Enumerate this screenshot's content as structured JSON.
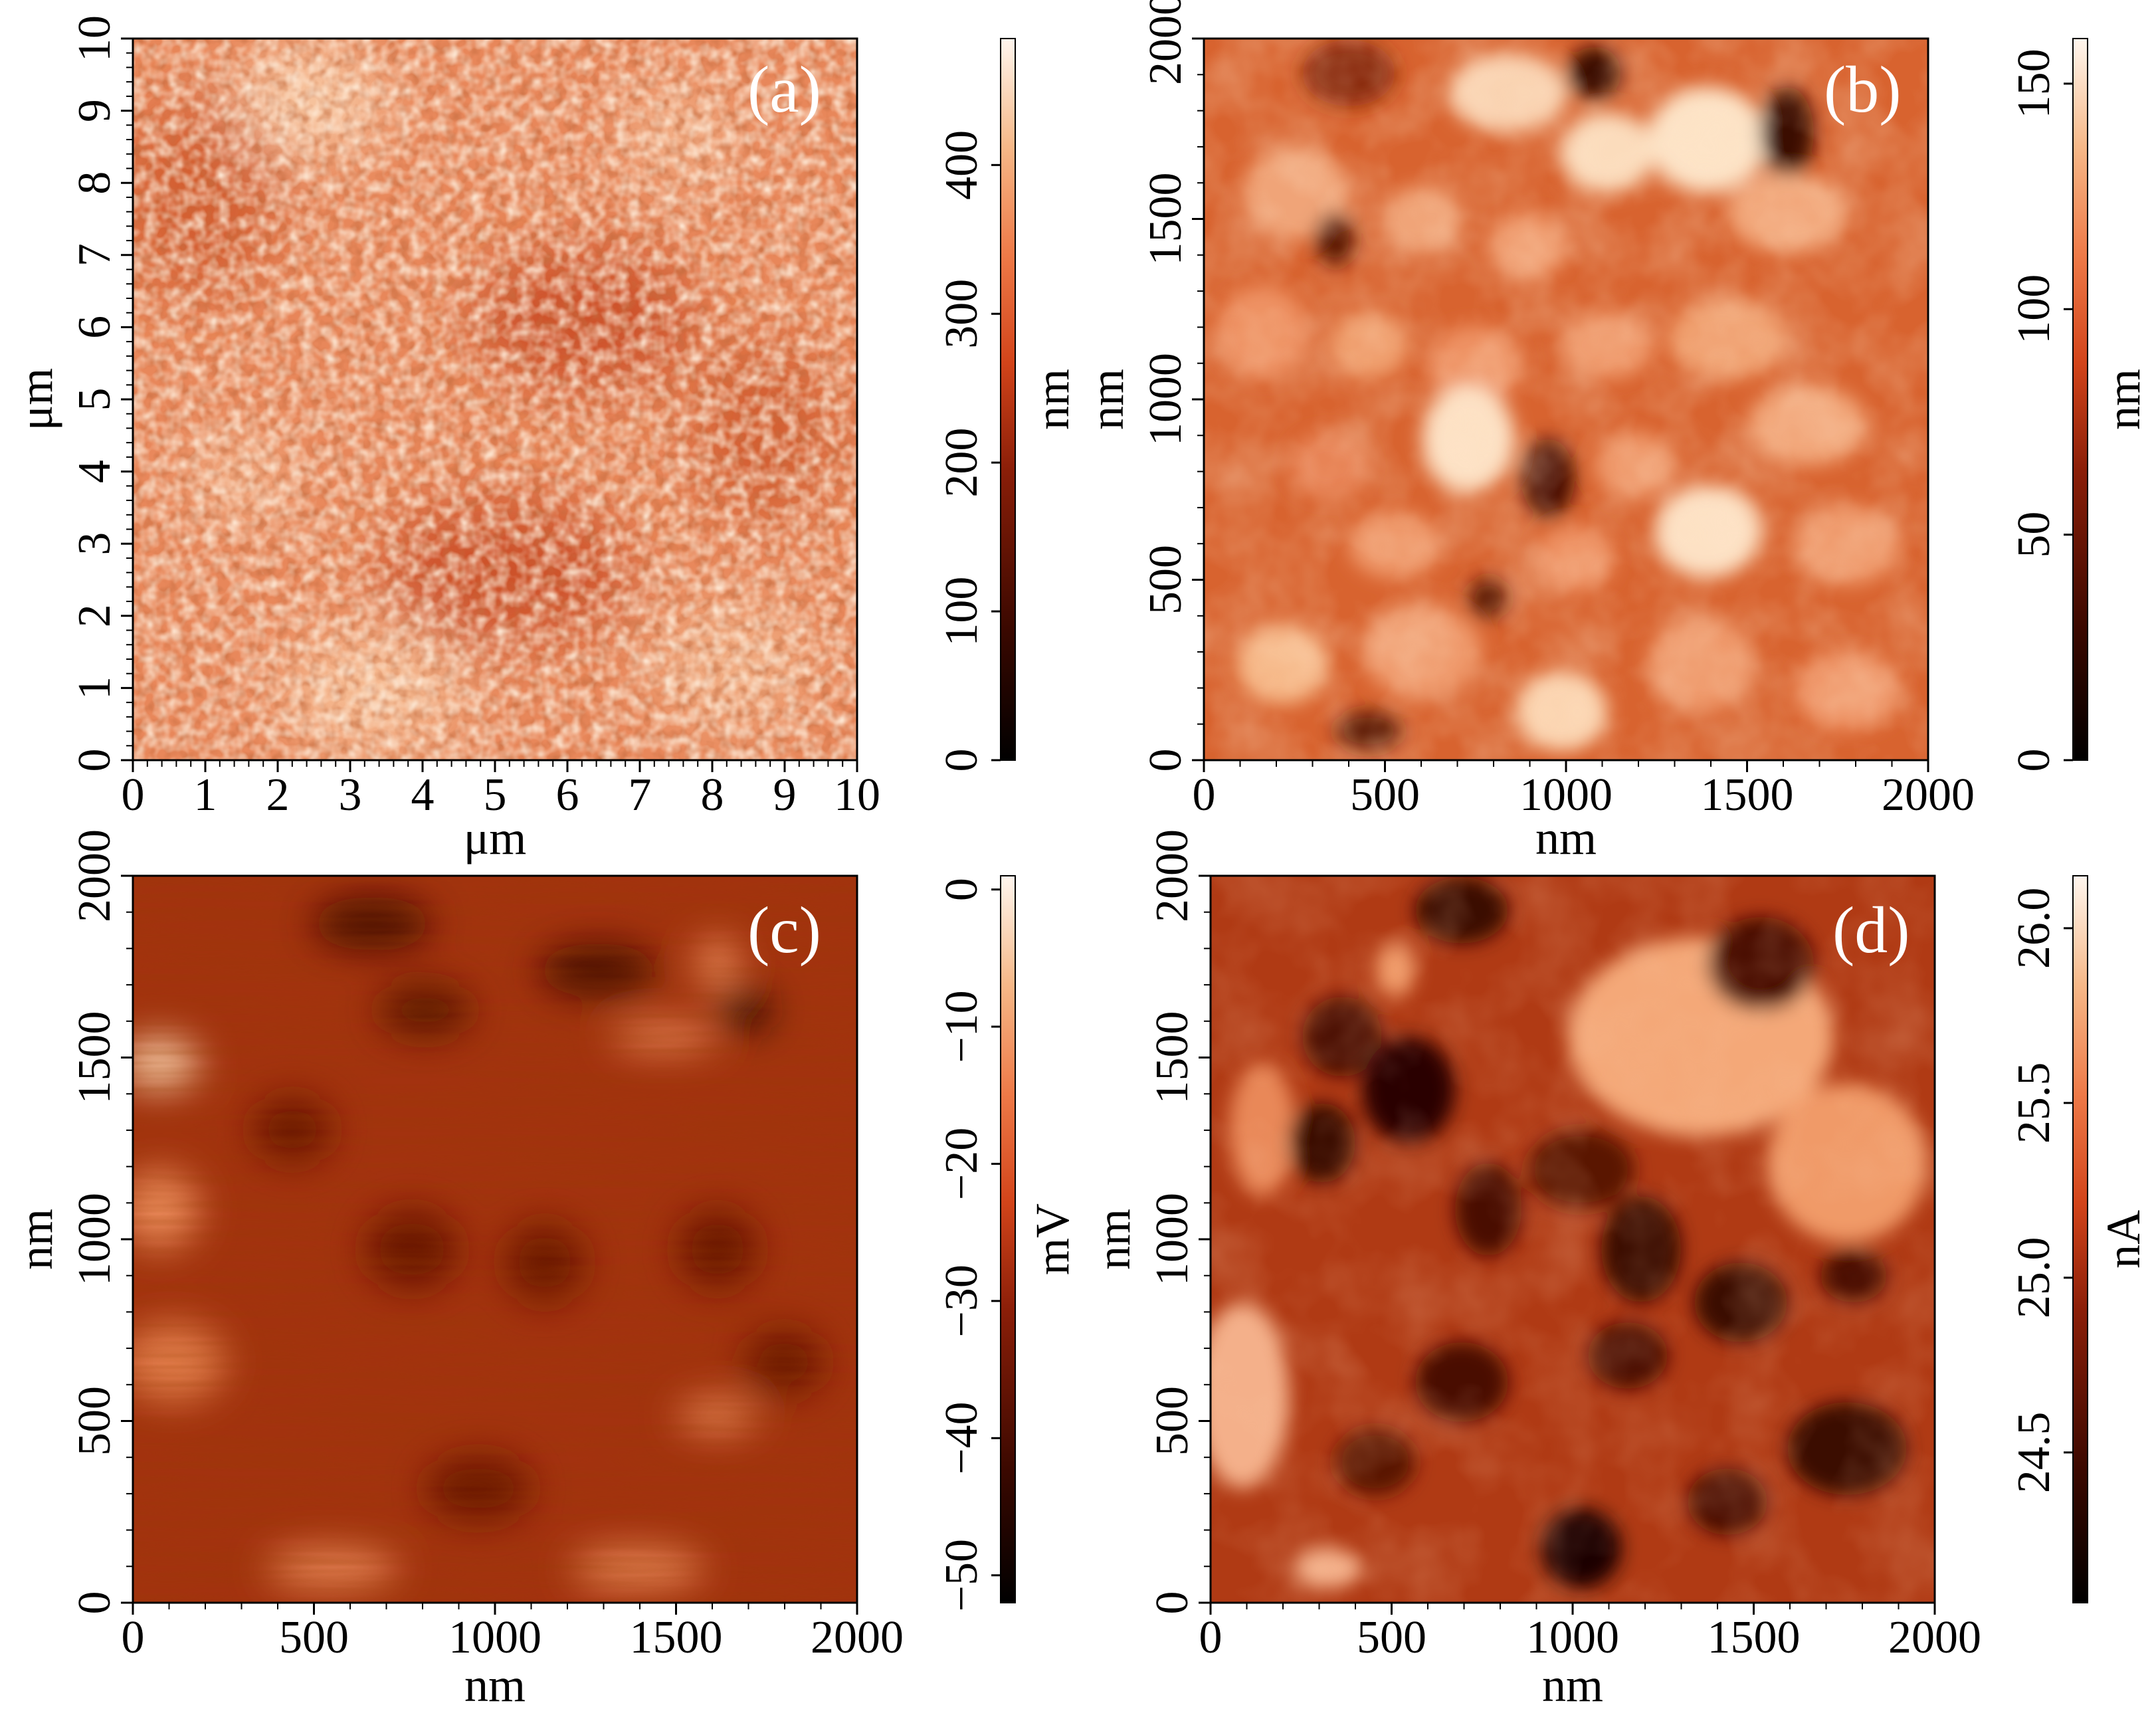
{
  "panels": [
    {
      "id": "a",
      "label": "(a)",
      "x_ticks": [
        "0",
        "1",
        "2",
        "3",
        "4",
        "5",
        "6",
        "7",
        "8",
        "9",
        "10"
      ],
      "y_ticks": [
        "0",
        "1",
        "2",
        "3",
        "4",
        "5",
        "6",
        "7",
        "8",
        "9",
        "10"
      ],
      "x_unit": "μm",
      "y_unit": "μm",
      "colorbar_ticks": [
        "0",
        "100",
        "200",
        "300",
        "400"
      ],
      "colorbar_unit": "nm"
    },
    {
      "id": "b",
      "label": "(b)",
      "x_ticks": [
        "0",
        "500",
        "1000",
        "1500",
        "2000"
      ],
      "y_ticks": [
        "0",
        "500",
        "1000",
        "1500",
        "2000"
      ],
      "x_unit": "nm",
      "y_unit": "nm",
      "colorbar_ticks": [
        "0",
        "50",
        "100",
        "150"
      ],
      "colorbar_unit": "nm"
    },
    {
      "id": "c",
      "label": "(c)",
      "x_ticks": [
        "0",
        "500",
        "1000",
        "1500",
        "2000"
      ],
      "y_ticks": [
        "0",
        "500",
        "1000",
        "1500",
        "2000"
      ],
      "x_unit": "nm",
      "y_unit": "nm",
      "colorbar_ticks": [
        "−50",
        "−40",
        "−30",
        "−20",
        "−10",
        "0"
      ],
      "colorbar_unit": "mV"
    },
    {
      "id": "d",
      "label": "(d)",
      "x_ticks": [
        "0",
        "500",
        "1000",
        "1500",
        "2000"
      ],
      "y_ticks": [
        "0",
        "500",
        "1000",
        "1500",
        "2000"
      ],
      "x_unit": "nm",
      "y_unit": "nm",
      "colorbar_ticks": [
        "24.5",
        "25.0",
        "25.5",
        "26.0"
      ],
      "colorbar_unit": "nA"
    }
  ],
  "colors": {
    "colormap": [
      "#000000",
      "#3a0800",
      "#8a1e08",
      "#d2441a",
      "#ee7a48",
      "#f6b888",
      "#fff6ee"
    ]
  }
}
